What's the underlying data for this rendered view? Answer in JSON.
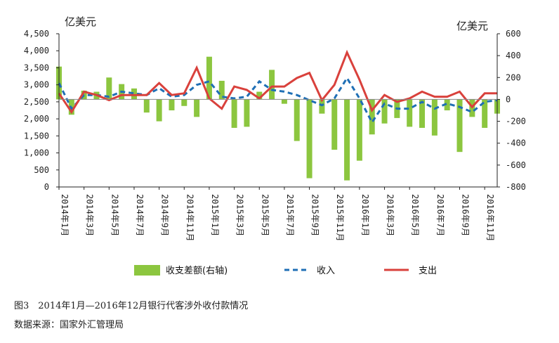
{
  "chart_data": {
    "type": "bar+line",
    "left_unit": "亿美元",
    "right_unit": "亿美元",
    "left_axis": {
      "ylim": [
        0,
        4500
      ],
      "ticks": [
        "0",
        "500",
        "1,000",
        "1,500",
        "2,000",
        "2,500",
        "3,000",
        "3,500",
        "4,000",
        "4,500"
      ]
    },
    "right_axis": {
      "ylim": [
        -800,
        600
      ],
      "ticks": [
        "-800",
        "-600",
        "-400",
        "-200",
        "0",
        "200",
        "400",
        "600"
      ]
    },
    "categories": [
      "2014年1月",
      "2014年2月",
      "2014年3月",
      "2014年4月",
      "2014年5月",
      "2014年6月",
      "2014年7月",
      "2014年8月",
      "2014年9月",
      "2014年10月",
      "2014年11月",
      "2014年12月",
      "2015年1月",
      "2015年2月",
      "2015年3月",
      "2015年4月",
      "2015年5月",
      "2015年6月",
      "2015年7月",
      "2015年8月",
      "2015年9月",
      "2015年10月",
      "2015年11月",
      "2015年12月",
      "2016年1月",
      "2016年2月",
      "2016年3月",
      "2016年4月",
      "2016年5月",
      "2016年6月",
      "2016年7月",
      "2016年8月",
      "2016年9月",
      "2016年10月",
      "2016年11月",
      "2016年12月"
    ],
    "x_tick_labels": [
      "2014年1月",
      "2014年3月",
      "2014年5月",
      "2014年7月",
      "2014年9月",
      "2014年11月",
      "2015年1月",
      "2015年3月",
      "2015年5月",
      "2015年7月",
      "2015年9月",
      "2015年11月",
      "2016年1月",
      "2016年3月",
      "2016年5月",
      "2016年7月",
      "2016年9月",
      "2016年11月"
    ],
    "series": [
      {
        "name": "收支差额(右轴)",
        "type": "bar",
        "axis": "right",
        "color": "#8cc63f",
        "values": [
          300,
          -140,
          80,
          70,
          200,
          140,
          100,
          -120,
          -200,
          -100,
          -60,
          -160,
          390,
          170,
          -260,
          -250,
          70,
          270,
          -40,
          -380,
          -720,
          -130,
          -460,
          -740,
          -560,
          -320,
          -220,
          -170,
          -250,
          -260,
          -330,
          -100,
          -480,
          -160,
          -260,
          -130
        ]
      },
      {
        "name": "收入",
        "type": "line",
        "axis": "left",
        "color": "#1f6fb5",
        "values": [
          3050,
          2300,
          2700,
          2700,
          2650,
          2800,
          2750,
          2700,
          2900,
          2650,
          2700,
          3000,
          3100,
          2650,
          2600,
          2650,
          3100,
          2850,
          2800,
          2700,
          2550,
          2400,
          2600,
          3200,
          2600,
          1900,
          2450,
          2300,
          2300,
          2500,
          2300,
          2450,
          2350,
          2200,
          2500,
          2550
        ]
      },
      {
        "name": "支出",
        "type": "line",
        "axis": "left",
        "color": "#d9413c",
        "values": [
          2750,
          2200,
          2800,
          2700,
          2550,
          2700,
          2700,
          2700,
          3050,
          2700,
          2750,
          3500,
          2600,
          2300,
          2950,
          2850,
          2600,
          2950,
          2950,
          3200,
          3350,
          2550,
          3000,
          3950,
          3150,
          2250,
          2700,
          2500,
          2600,
          2800,
          2650,
          2650,
          2800,
          2350,
          2750,
          2750
        ]
      }
    ]
  },
  "caption": "图3　2014年1月—2016年12月银行代客涉外收付款情况",
  "source": "数据来源：国家外汇管理局"
}
